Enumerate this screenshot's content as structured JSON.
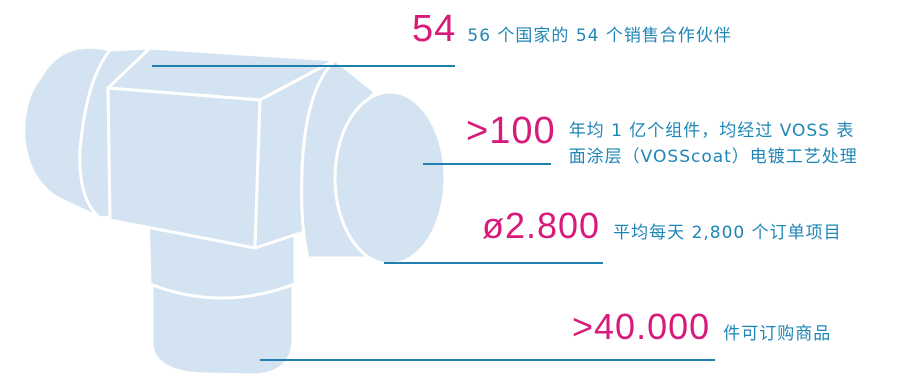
{
  "colors": {
    "highlight": "#d81b7a",
    "text": "#1f86b6",
    "leader_line": "#1f7fae",
    "fitting_fill": "#d3e3f1",
    "fitting_edge": "#ffffff"
  },
  "stats": [
    {
      "value": "54",
      "description": "56 个国家的 54 个销售合作伙伴"
    },
    {
      "value": ">100",
      "description_lines": [
        "年均 1 亿个组件，均经过 VOSS 表",
        "面涂层（VOSScoat）电镀工艺处理"
      ]
    },
    {
      "value": "ø2.800",
      "description": "平均每天 2,800 个订单项目"
    },
    {
      "value": ">40.000",
      "description": "件可订购商品"
    }
  ]
}
